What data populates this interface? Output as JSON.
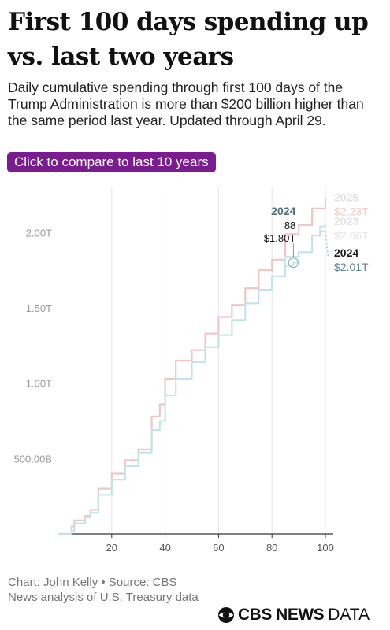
{
  "title": "First 100 days spending up vs. last two years",
  "subtitle": "Daily cumulative spending through first 100 days of the Trump Administration is more than $200 billion higher than the same period last year. Updated through April 29.",
  "compare_button": "Click to compare to last 10 years",
  "footer": {
    "credit_prefix": "Chart: John Kelly • Source: ",
    "source_link": "CBS News analysis of U.S. Treasury data"
  },
  "brand": {
    "name": "CBS NEWS",
    "suffix": "DATA"
  },
  "colors": {
    "y2025": "#f1c5c5",
    "y2023": "#cce8ec",
    "y2024": "#5b8590",
    "button": "#7a1c8f"
  },
  "chart_data": {
    "type": "line",
    "xlim": [
      0,
      100
    ],
    "ylim": [
      0,
      2.3
    ],
    "x_ticks": [
      20,
      40,
      60,
      80,
      100
    ],
    "x_tick_labels": [
      "20",
      "40",
      "60",
      "80",
      "100"
    ],
    "y_ticks": [
      0.5,
      1.0,
      1.5,
      2.0
    ],
    "y_tick_labels": [
      "500.00B",
      "1.00T",
      "1.50T",
      "2.00T"
    ],
    "grid": "vertical",
    "series": [
      {
        "name": "2025",
        "end_label": "$2.23T",
        "x": [
          0,
          5,
          6,
          10,
          12,
          15,
          20,
          25,
          30,
          35,
          38,
          40,
          44,
          50,
          55,
          60,
          65,
          70,
          75,
          80,
          85,
          90,
          95,
          100
        ],
        "y": [
          0,
          0.05,
          0.09,
          0.12,
          0.16,
          0.3,
          0.4,
          0.49,
          0.56,
          0.78,
          0.86,
          1.03,
          1.15,
          1.22,
          1.33,
          1.44,
          1.52,
          1.63,
          1.75,
          1.82,
          1.99,
          2.05,
          2.16,
          2.23
        ]
      },
      {
        "name": "2023",
        "end_label": "$2.06T",
        "x": [
          0,
          5,
          6,
          10,
          12,
          15,
          20,
          25,
          30,
          35,
          38,
          40,
          44,
          50,
          55,
          60,
          65,
          70,
          75,
          80,
          85,
          90,
          95,
          98,
          100
        ],
        "y": [
          0,
          0.02,
          0.07,
          0.11,
          0.14,
          0.26,
          0.36,
          0.45,
          0.54,
          0.69,
          0.75,
          0.92,
          1.03,
          1.14,
          1.24,
          1.32,
          1.42,
          1.53,
          1.62,
          1.71,
          1.84,
          1.87,
          1.98,
          2.04,
          2.06
        ]
      },
      {
        "name": "2024",
        "end_label": "$2.01T",
        "x": [
          0,
          5,
          6,
          10,
          12,
          15,
          20,
          25,
          30,
          35,
          38,
          40,
          44,
          50,
          55,
          60,
          65,
          70,
          75,
          80,
          85,
          88,
          90,
          95,
          98,
          100,
          101
        ],
        "y": [
          0,
          0.02,
          0.07,
          0.11,
          0.14,
          0.26,
          0.36,
          0.45,
          0.54,
          0.69,
          0.75,
          0.92,
          1.03,
          1.14,
          1.24,
          1.32,
          1.42,
          1.53,
          1.62,
          1.71,
          1.78,
          1.8,
          1.87,
          1.98,
          2.01,
          2.01,
          1.84
        ]
      }
    ],
    "tooltip": {
      "series": "2024",
      "x_label": "88",
      "value_label": "$1.80T",
      "x": 88,
      "y": 1.8
    }
  }
}
